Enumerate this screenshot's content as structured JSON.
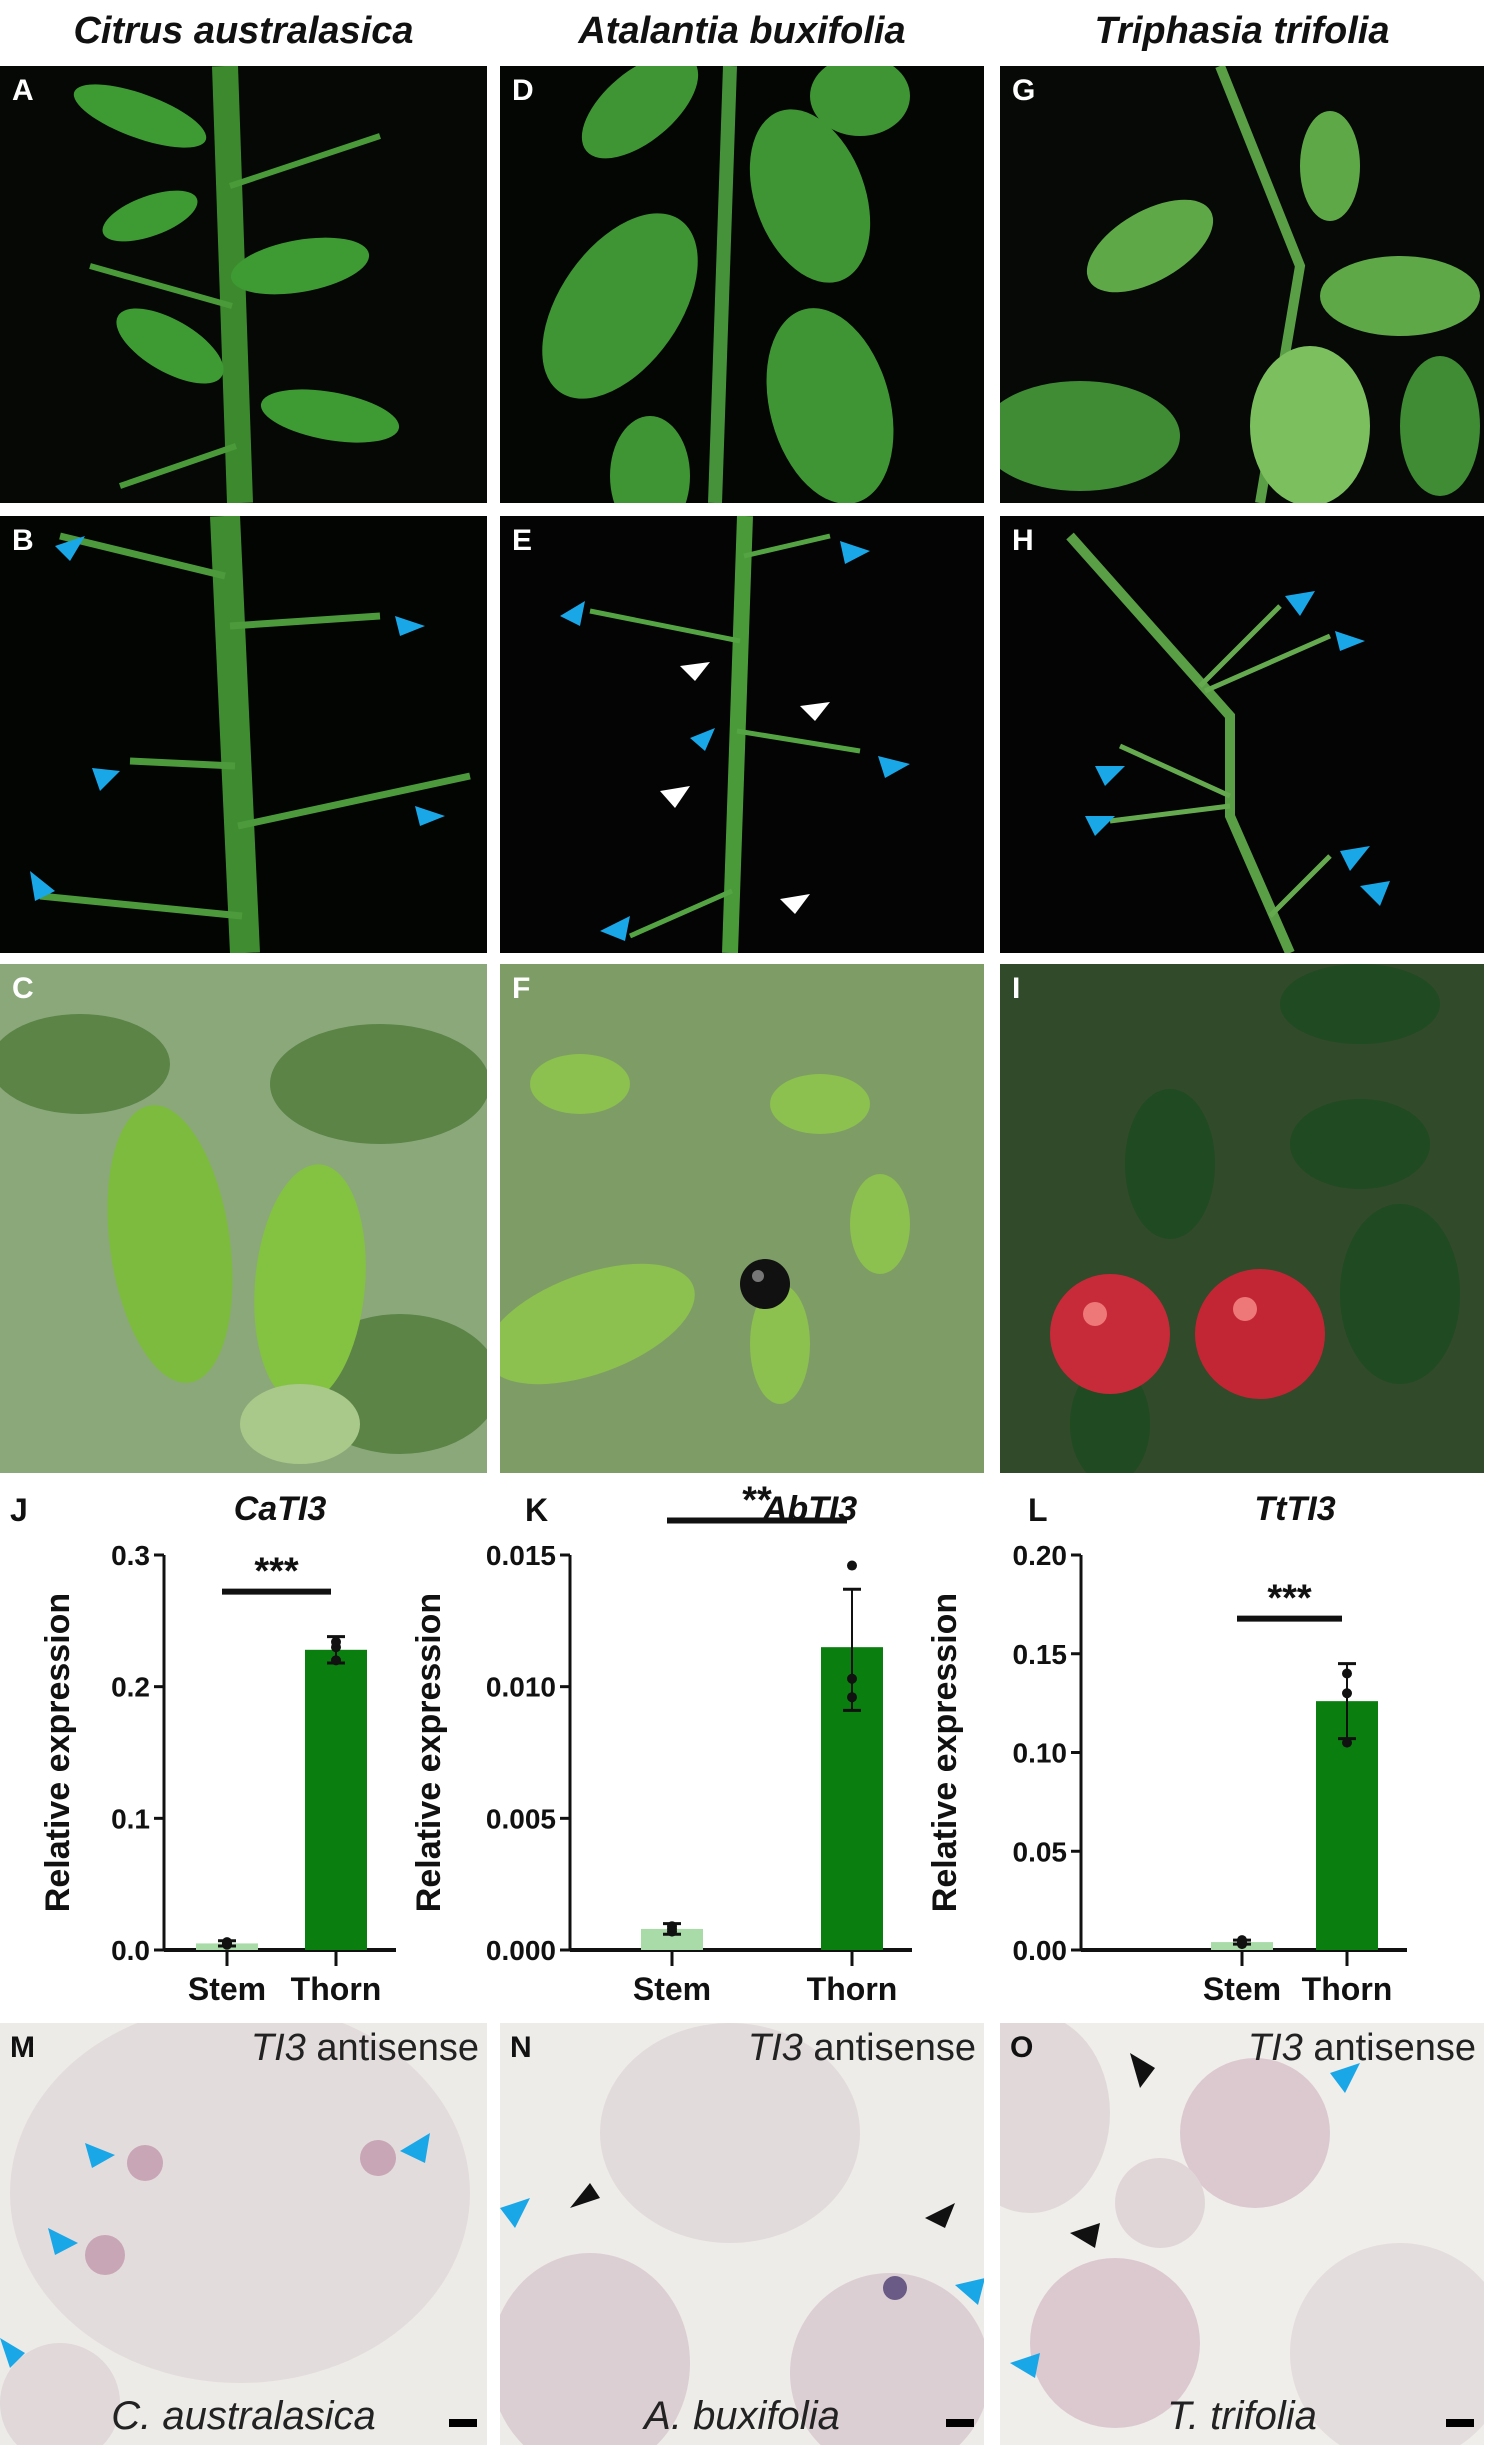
{
  "columns": [
    {
      "title": "Citrus australasica"
    },
    {
      "title": "Atalantia buxifolia"
    },
    {
      "title": "Triphasia trifolia"
    }
  ],
  "panels": {
    "photos": [
      [
        "A",
        "B",
        "C"
      ],
      [
        "D",
        "E",
        "F"
      ],
      [
        "G",
        "H",
        "I"
      ]
    ],
    "charts": [
      "J",
      "K",
      "L"
    ],
    "ish": [
      "M",
      "N",
      "O"
    ]
  },
  "colors": {
    "blue_arrow": "#1aa7e8",
    "white_arrow": "#ffffff",
    "black_arrow": "#111111",
    "stem_bar": "#a9dba9",
    "thorn_bar": "#0a7f10"
  },
  "chart_data": [
    {
      "type": "bar",
      "title": "CaTI3",
      "ylabel": "Relative expression",
      "categories": [
        "Stem",
        "Thorn"
      ],
      "values": [
        0.005,
        0.228
      ],
      "error": [
        [
          0.003,
          0.007
        ],
        [
          0.218,
          0.238
        ]
      ],
      "points": [
        [
          0.004,
          0.005,
          0.006
        ],
        [
          0.22,
          0.23,
          0.234
        ]
      ],
      "ylim": [
        0,
        0.3
      ],
      "yticks": [
        "0.0",
        "0.1",
        "0.2",
        "0.3"
      ],
      "significance": "***"
    },
    {
      "type": "bar",
      "title": "AbTI3",
      "ylabel": "Relative expression",
      "categories": [
        "Stem",
        "Thorn"
      ],
      "values": [
        0.0008,
        0.0115
      ],
      "error": [
        [
          0.0006,
          0.001
        ],
        [
          0.0091,
          0.0137
        ]
      ],
      "points": [
        [
          0.0007,
          0.0008,
          0.0009
        ],
        [
          0.0096,
          0.0103,
          0.0146
        ]
      ],
      "ylim": [
        0,
        0.015
      ],
      "yticks": [
        "0.000",
        "0.005",
        "0.010",
        "0.015"
      ],
      "significance": "**"
    },
    {
      "type": "bar",
      "title": "TtTI3",
      "ylabel": "Relative expression",
      "categories": [
        "Stem",
        "Thorn"
      ],
      "values": [
        0.004,
        0.126
      ],
      "error": [
        [
          0.003,
          0.005
        ],
        [
          0.107,
          0.145
        ]
      ],
      "points": [
        [
          0.003,
          0.004,
          0.005
        ],
        [
          0.105,
          0.13,
          0.14
        ]
      ],
      "ylim": [
        0,
        0.2
      ],
      "yticks": [
        "0.00",
        "0.05",
        "0.10",
        "0.15",
        "0.20"
      ],
      "significance": "***"
    }
  ],
  "ish": [
    {
      "probe_gene": "TI3",
      "probe_type": " antisense",
      "species": "C. australasica"
    },
    {
      "probe_gene": "TI3",
      "probe_type": " antisense",
      "species": "A. buxifolia"
    },
    {
      "probe_gene": "TI3",
      "probe_type": " antisense",
      "species": "T. trifolia"
    }
  ]
}
